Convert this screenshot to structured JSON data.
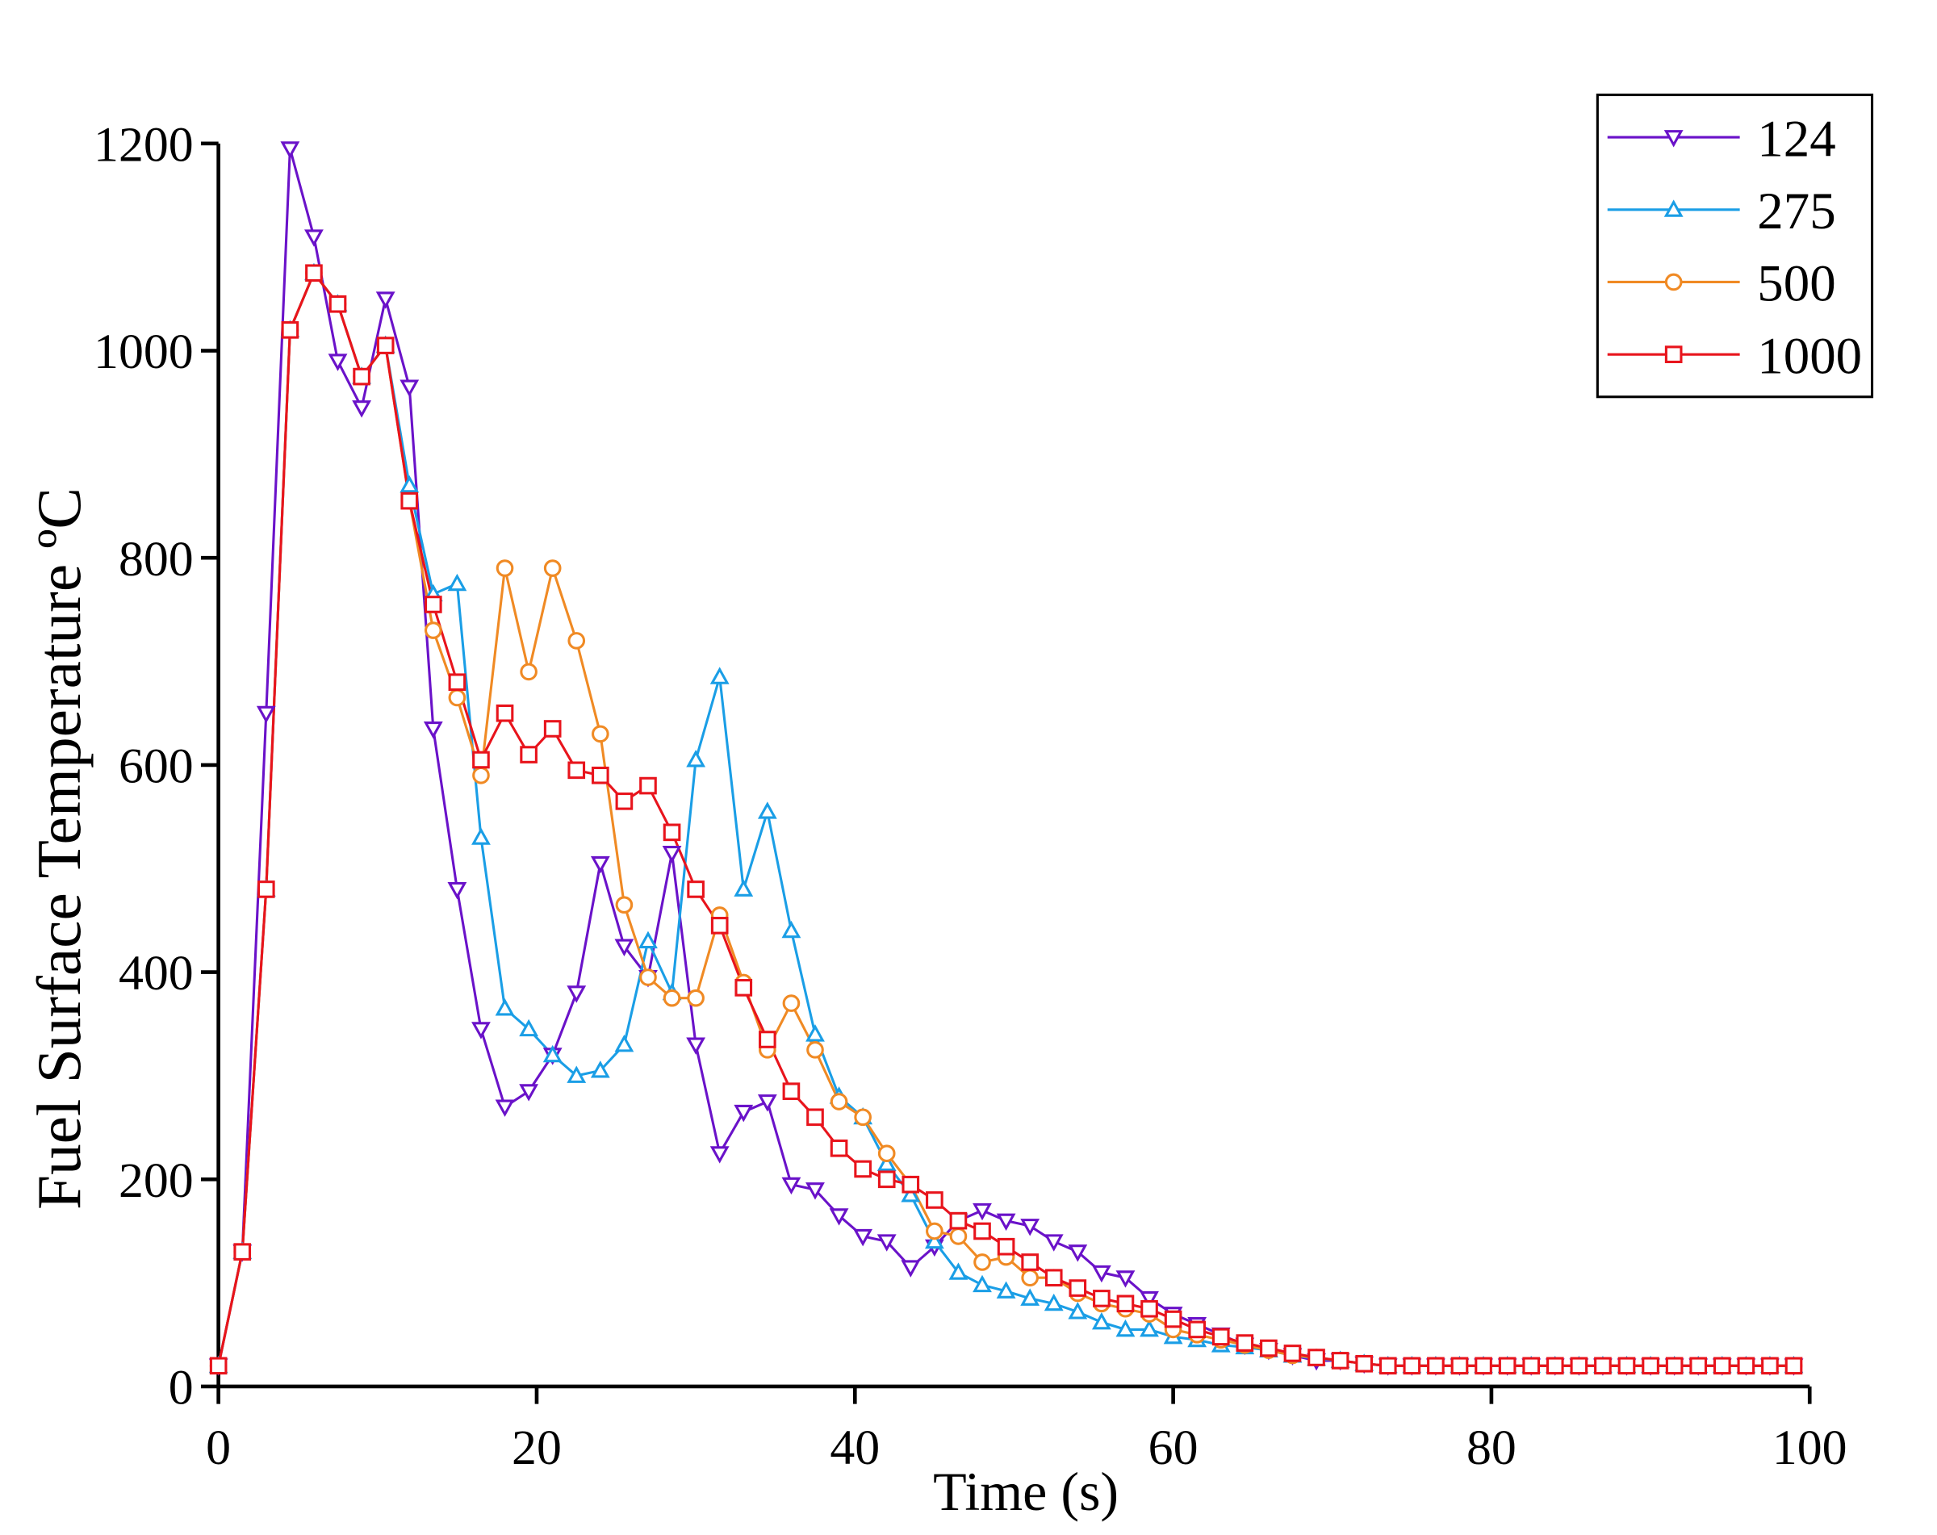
{
  "chart_data": {
    "type": "line",
    "xlabel": "Time (s)",
    "ylabel": "Fuel Surface Temperature ºC",
    "xlim": [
      0,
      100
    ],
    "ylim": [
      0,
      1200
    ],
    "xticks": [
      0,
      20,
      40,
      60,
      80,
      100
    ],
    "yticks": [
      0,
      200,
      400,
      600,
      800,
      1000,
      1200
    ],
    "legend": "upper right",
    "x": [
      0,
      1.5,
      3,
      4.5,
      6,
      7.5,
      9,
      10.5,
      12,
      13.5,
      15,
      16.5,
      18,
      19.5,
      21,
      22.5,
      24,
      25.5,
      27,
      28.5,
      30,
      31.5,
      33,
      34.5,
      36,
      37.5,
      39,
      40.5,
      42,
      43.5,
      45,
      46.5,
      48,
      49.5,
      51,
      52.5,
      54,
      55.5,
      57,
      58.5,
      60,
      61.5,
      63,
      64.5,
      66,
      67.5,
      69,
      70.5,
      72,
      73.5,
      75,
      76.5,
      78,
      79.5,
      81,
      82.5,
      84,
      85.5,
      87,
      88.5,
      90,
      91.5,
      93,
      94.5,
      96,
      97.5,
      99
    ],
    "series": [
      {
        "name": "124",
        "color": "#6a12c9",
        "marker": "triangle-down",
        "values": [
          20,
          130,
          650,
          1195,
          1110,
          990,
          945,
          1050,
          965,
          635,
          480,
          345,
          270,
          285,
          320,
          380,
          505,
          425,
          395,
          515,
          330,
          225,
          265,
          275,
          195,
          190,
          165,
          145,
          140,
          115,
          135,
          160,
          170,
          160,
          155,
          140,
          130,
          110,
          105,
          85,
          70,
          60,
          50,
          40,
          35,
          30,
          25,
          25,
          22,
          20,
          20,
          20,
          20,
          20,
          20,
          20,
          20,
          20,
          20,
          20,
          20,
          20,
          20,
          20,
          20,
          20,
          20
        ]
      },
      {
        "name": "275",
        "color": "#1a9ee6",
        "marker": "triangle-up",
        "values": [
          20,
          130,
          480,
          1020,
          1075,
          1045,
          975,
          1005,
          870,
          765,
          775,
          530,
          365,
          345,
          320,
          300,
          305,
          330,
          430,
          380,
          605,
          685,
          480,
          555,
          440,
          340,
          280,
          260,
          215,
          185,
          140,
          110,
          98,
          92,
          85,
          80,
          72,
          62,
          55,
          55,
          48,
          45,
          40,
          38,
          35,
          30,
          27,
          25,
          22,
          20,
          20,
          20,
          20,
          20,
          20,
          20,
          20,
          20,
          20,
          20,
          20,
          20,
          20,
          20,
          20,
          20,
          20
        ]
      },
      {
        "name": "500",
        "color": "#f08a24",
        "marker": "circle",
        "values": [
          20,
          130,
          480,
          1020,
          1075,
          1045,
          975,
          1005,
          855,
          730,
          665,
          590,
          790,
          690,
          790,
          720,
          630,
          465,
          395,
          375,
          375,
          455,
          390,
          325,
          370,
          325,
          275,
          260,
          225,
          195,
          150,
          145,
          120,
          125,
          105,
          105,
          90,
          80,
          75,
          70,
          55,
          50,
          45,
          40,
          35,
          30,
          28,
          25,
          22,
          20,
          20,
          20,
          20,
          20,
          20,
          20,
          20,
          20,
          20,
          20,
          20,
          20,
          20,
          20,
          20,
          20,
          20
        ]
      },
      {
        "name": "1000",
        "color": "#e8141c",
        "marker": "square",
        "values": [
          20,
          130,
          480,
          1020,
          1075,
          1045,
          975,
          1005,
          855,
          755,
          680,
          605,
          650,
          610,
          635,
          595,
          590,
          565,
          580,
          535,
          480,
          445,
          385,
          335,
          285,
          260,
          230,
          210,
          200,
          195,
          180,
          160,
          150,
          135,
          120,
          105,
          95,
          85,
          80,
          75,
          65,
          55,
          48,
          42,
          37,
          32,
          28,
          25,
          22,
          20,
          20,
          20,
          20,
          20,
          20,
          20,
          20,
          20,
          20,
          20,
          20,
          20,
          20,
          20,
          20,
          20,
          20
        ]
      }
    ]
  }
}
